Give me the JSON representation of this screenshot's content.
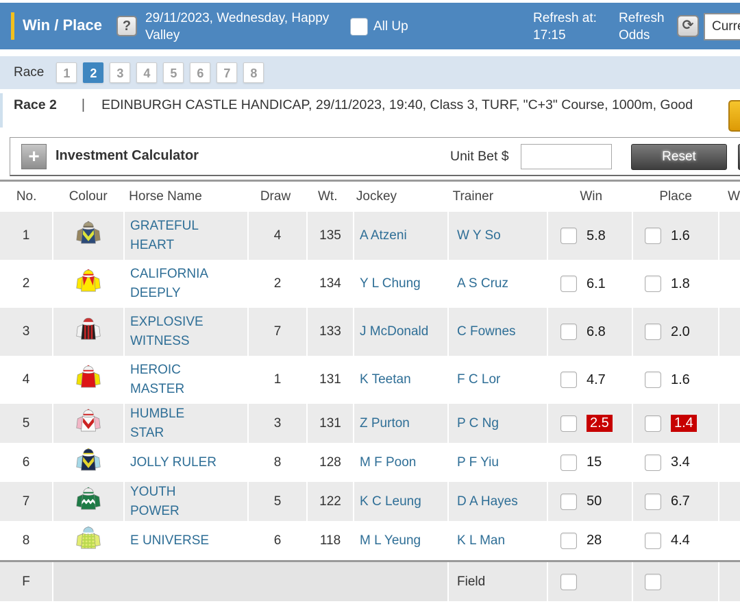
{
  "header": {
    "title": "Win / Place",
    "help_icon": "?",
    "meeting": "29/11/2023, Wednesday, Happy Valley",
    "all_up_label": "All Up",
    "refresh_at_label": "Refresh at:",
    "refresh_time": "17:15",
    "refresh_odds_label": "Refresh Odds",
    "refresh_icon": "⟳",
    "odds_select_value": "Current Odds"
  },
  "race_nav": {
    "label": "Race",
    "races": [
      "1",
      "2",
      "3",
      "4",
      "5",
      "6",
      "7",
      "8"
    ],
    "selected": "2"
  },
  "race_info": {
    "race_label": "Race 2",
    "separator": "|",
    "details": "EDINBURGH CASTLE HANDICAP, 29/11/2023, 19:40, Class 3, TURF, \"C+3\" Course, 1000m, Good"
  },
  "calculator": {
    "expand_icon": "+",
    "title": "Investment Calculator",
    "unit_bet_label": "Unit Bet $",
    "unit_bet_value": "",
    "reset_label": "Reset"
  },
  "table": {
    "headers": [
      "No.",
      "Colour",
      "Horse Name",
      "Draw",
      "Wt.",
      "Jockey",
      "Trainer",
      "Win",
      "Place",
      "W"
    ],
    "rows": [
      {
        "no": "1",
        "name": "GRATEFUL HEART",
        "draw": "4",
        "wt": "135",
        "jockey": "A Atzeni",
        "trainer": "W Y So",
        "win": "5.8",
        "place": "1.6",
        "win_hot": false,
        "place_hot": false,
        "silks": {
          "cap": "#a59a7a",
          "cap_band": "#6b6352",
          "body": "#2c4a78",
          "sleeves": "#96855f",
          "pattern": "chevron",
          "pattern_color": "#dde23a"
        }
      },
      {
        "no": "2",
        "name": "CALIFORNIA DEEPLY",
        "draw": "2",
        "wt": "134",
        "jockey": "Y L Chung",
        "trainer": "A S Cruz",
        "win": "6.1",
        "place": "1.8",
        "win_hot": false,
        "place_hot": false,
        "silks": {
          "cap": "#ffe800",
          "cap_band": "#dd2222",
          "body": "#ffe800",
          "sleeves": "#ffe800",
          "pattern": "yoke",
          "pattern_color": "#dd2222"
        }
      },
      {
        "no": "3",
        "name": "EXPLOSIVE WITNESS",
        "draw": "7",
        "wt": "133",
        "jockey": "J McDonald",
        "trainer": "C Fownes",
        "win": "6.8",
        "place": "2.0",
        "win_hot": false,
        "place_hot": false,
        "silks": {
          "cap": "#cc3333",
          "cap_band": "#ffffff",
          "body": "#221e1e",
          "sleeves": "#f2f2f2",
          "pattern": "stripes",
          "pattern_color": "#c22626"
        }
      },
      {
        "no": "4",
        "name": "HEROIC MASTER",
        "draw": "1",
        "wt": "131",
        "jockey": "K Teetan",
        "trainer": "F C Lor",
        "win": "4.7",
        "place": "1.6",
        "win_hot": false,
        "place_hot": false,
        "silks": {
          "cap": "#f2f2f2",
          "cap_band": "#dd2222",
          "body": "#dd1515",
          "sleeves": "#f2e000",
          "pattern": "none",
          "pattern_color": "#ffffff"
        }
      },
      {
        "no": "5",
        "name": "HUMBLE STAR",
        "draw": "3",
        "wt": "131",
        "jockey": "Z Purton",
        "trainer": "P C Ng",
        "win": "2.5",
        "place": "1.4",
        "win_hot": true,
        "place_hot": true,
        "silks": {
          "cap": "#f5f5f5",
          "cap_band": "#cc2222",
          "body": "#fbfbfb",
          "sleeves": "#f2b6c6",
          "pattern": "chevron",
          "pattern_color": "#cc2222"
        }
      },
      {
        "no": "6",
        "name": "JOLLY RULER",
        "draw": "8",
        "wt": "128",
        "jockey": "M F Poon",
        "trainer": "P F Yiu",
        "win": "15",
        "place": "3.4",
        "win_hot": false,
        "place_hot": false,
        "silks": {
          "cap": "#1b2c50",
          "cap_band": "#e3d42e",
          "body": "#1b2c50",
          "sleeves": "#a6d9e8",
          "pattern": "chevron",
          "pattern_color": "#e3d42e"
        }
      },
      {
        "no": "7",
        "name": "YOUTH POWER",
        "draw": "5",
        "wt": "122",
        "jockey": "K C Leung",
        "trainer": "D A Hayes",
        "win": "50",
        "place": "6.7",
        "win_hot": false,
        "place_hot": false,
        "silks": {
          "cap": "#eeeeee",
          "cap_band": "#1e7b46",
          "body": "#1e7b46",
          "sleeves": "#1e7b46",
          "pattern": "zigzag",
          "pattern_color": "#ffffff"
        }
      },
      {
        "no": "8",
        "name": "E UNIVERSE",
        "draw": "6",
        "wt": "118",
        "jockey": "M L Yeung",
        "trainer": "K L Man",
        "win": "28",
        "place": "4.4",
        "win_hot": false,
        "place_hot": false,
        "silks": {
          "cap": "#a9d6e5",
          "cap_band": "#a9d6e5",
          "body": "#e2ec73",
          "sleeves": "#e2ec73",
          "pattern": "checks",
          "pattern_color": "#b8d94e"
        }
      }
    ],
    "field_row": {
      "no": "F",
      "label": "Field"
    }
  },
  "colors": {
    "header_bg": "#4d87bf",
    "accent_yellow": "#f2c01e",
    "race_bar_bg": "#d9e4f0",
    "selected_race_bg": "#3e86c0",
    "link_blue": "#2e6e96",
    "hot_odds_bg": "#c70000",
    "alt_row_bg": "#ebebeb"
  }
}
